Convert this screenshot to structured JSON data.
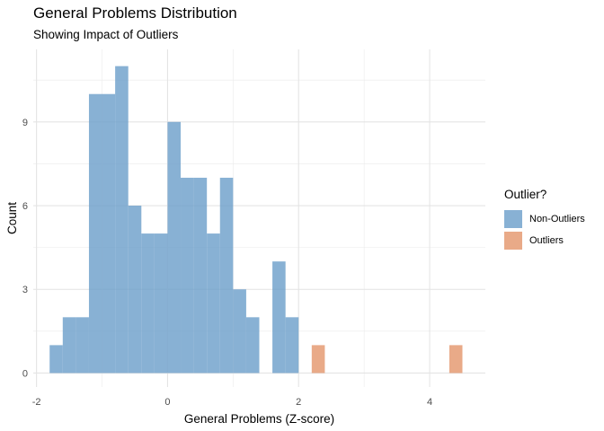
{
  "chart_data": {
    "type": "bar",
    "title": "General Problems Distribution",
    "subtitle": "Showing Impact of Outliers",
    "xlabel": "General Problems (Z-score)",
    "ylabel": "Count",
    "xlim": [
      -2.05,
      4.85
    ],
    "ylim": [
      -0.5,
      11.6
    ],
    "x_ticks": [
      -2,
      0,
      2,
      4
    ],
    "y_ticks": [
      0,
      3,
      6,
      9
    ],
    "bin_width": 0.2,
    "grid": true,
    "legend": {
      "title": "Outlier?",
      "position": "right",
      "entries": [
        {
          "label": "Non-Outliers",
          "color": "#6a9ec9"
        },
        {
          "label": "Outliers",
          "color": "#e3956a"
        }
      ]
    },
    "series": [
      {
        "name": "Non-Outliers",
        "color": "#6a9ec9",
        "bins": [
          {
            "x0": -1.8,
            "count": 1
          },
          {
            "x0": -1.6,
            "count": 2
          },
          {
            "x0": -1.4,
            "count": 2
          },
          {
            "x0": -1.2,
            "count": 10
          },
          {
            "x0": -1.0,
            "count": 10
          },
          {
            "x0": -0.8,
            "count": 11
          },
          {
            "x0": -0.6,
            "count": 6
          },
          {
            "x0": -0.4,
            "count": 5
          },
          {
            "x0": -0.2,
            "count": 5
          },
          {
            "x0": 0.0,
            "count": 9
          },
          {
            "x0": 0.2,
            "count": 7
          },
          {
            "x0": 0.4,
            "count": 7
          },
          {
            "x0": 0.6,
            "count": 5
          },
          {
            "x0": 0.8,
            "count": 7
          },
          {
            "x0": 1.0,
            "count": 3
          },
          {
            "x0": 1.2,
            "count": 2
          },
          {
            "x0": 1.6,
            "count": 4
          },
          {
            "x0": 1.8,
            "count": 2
          }
        ]
      },
      {
        "name": "Outliers",
        "color": "#e3956a",
        "bins": [
          {
            "x0": 2.2,
            "count": 1
          },
          {
            "x0": 4.3,
            "count": 1
          }
        ]
      }
    ]
  }
}
